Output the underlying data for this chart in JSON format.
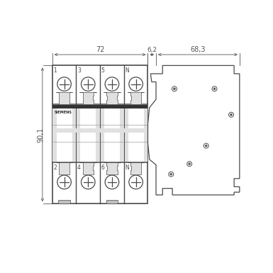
{
  "bg_color": "#ffffff",
  "line_color": "#4a4a4a",
  "dim_color": "#555555",
  "fill_light": "#e0e0e0",
  "fill_medium": "#c0c0c0",
  "fill_dark": "#999999",
  "fig_width": 3.85,
  "fig_height": 3.85,
  "dpi": 100,
  "dim_72_label": "72",
  "dim_62_label": "6,2",
  "dim_683_label": "68,3",
  "dim_901_label": "90,1",
  "labels_top": [
    "1",
    "3",
    "5",
    "N"
  ],
  "labels_bot": [
    "2",
    "4",
    "6",
    "N"
  ],
  "siemens_text": "SIEMENS"
}
